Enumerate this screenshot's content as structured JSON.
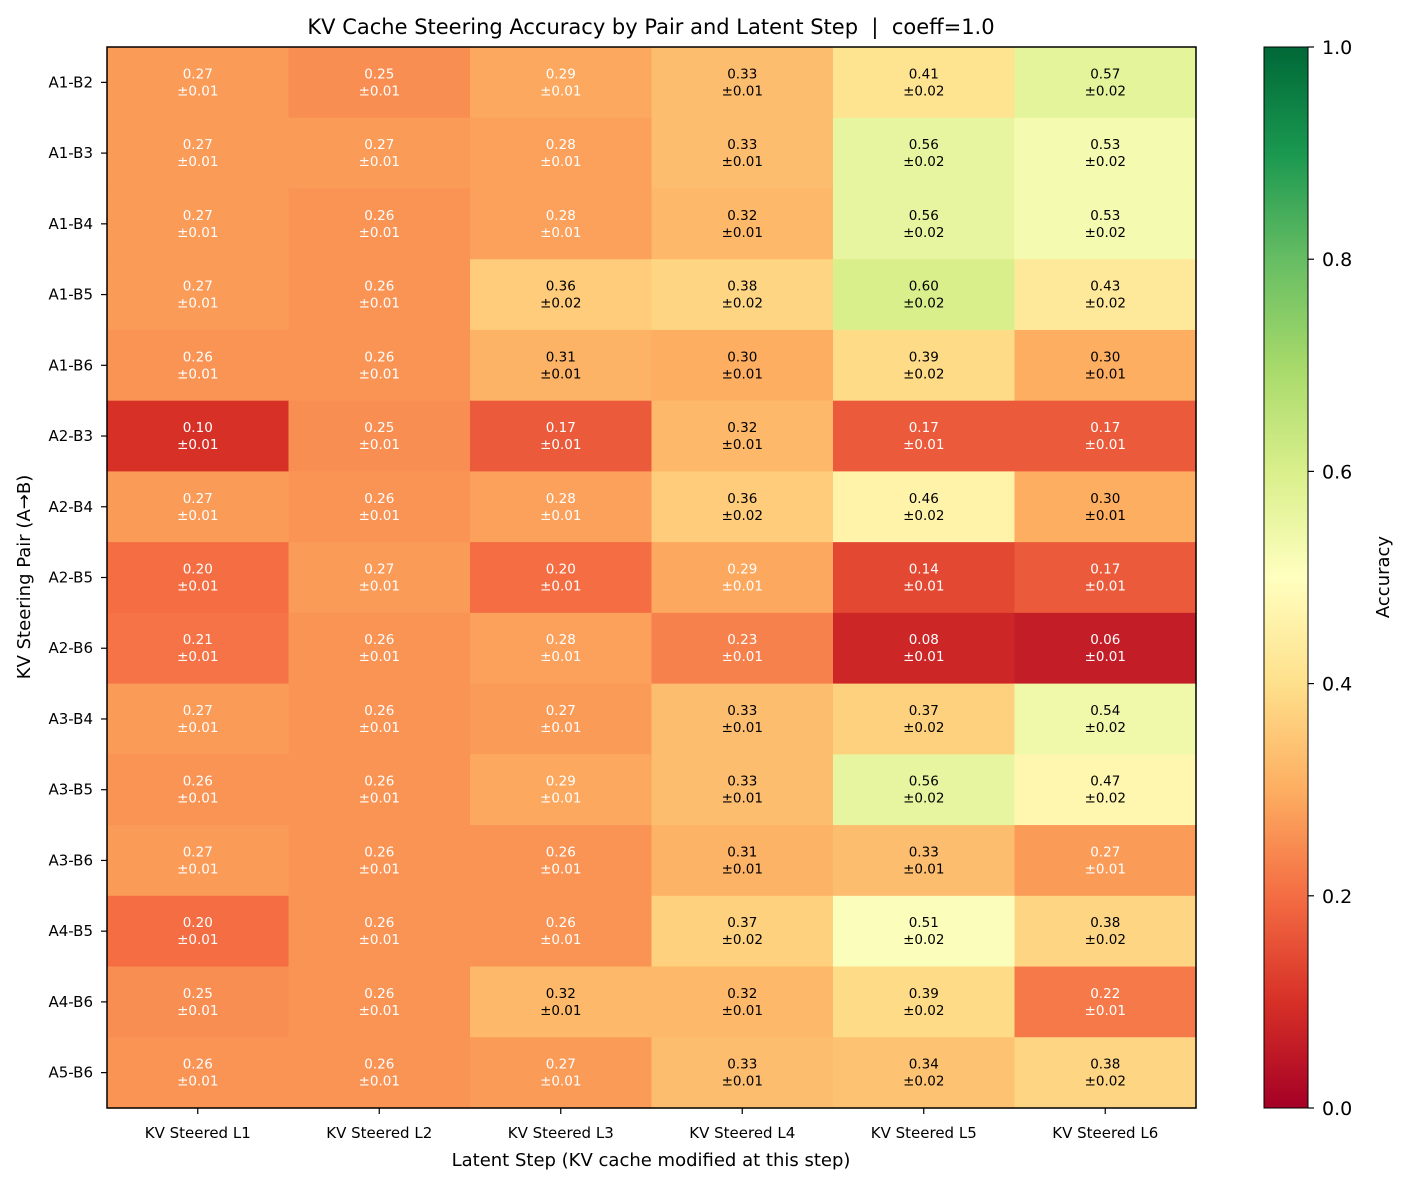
{
  "chart_data": {
    "type": "heatmap",
    "title": "KV Cache Steering Accuracy by Pair and Latent Step  |  coeff=1.0",
    "xlabel": "Latent Step (KV cache modified at this step)",
    "ylabel": "KV Steering Pair (A→B)",
    "columns": [
      "KV Steered L1",
      "KV Steered L2",
      "KV Steered L3",
      "KV Steered L4",
      "KV Steered L5",
      "KV Steered L6"
    ],
    "rows": [
      "A1-B2",
      "A1-B3",
      "A1-B4",
      "A1-B5",
      "A1-B6",
      "A2-B3",
      "A2-B4",
      "A2-B5",
      "A2-B6",
      "A3-B4",
      "A3-B5",
      "A3-B6",
      "A4-B5",
      "A4-B6",
      "A5-B6"
    ],
    "values": [
      [
        0.27,
        0.25,
        0.29,
        0.33,
        0.41,
        0.57
      ],
      [
        0.27,
        0.27,
        0.28,
        0.33,
        0.56,
        0.53
      ],
      [
        0.27,
        0.26,
        0.28,
        0.32,
        0.56,
        0.53
      ],
      [
        0.27,
        0.26,
        0.36,
        0.38,
        0.6,
        0.43
      ],
      [
        0.26,
        0.26,
        0.31,
        0.3,
        0.39,
        0.3
      ],
      [
        0.1,
        0.25,
        0.17,
        0.32,
        0.17,
        0.17
      ],
      [
        0.27,
        0.26,
        0.28,
        0.36,
        0.46,
        0.3
      ],
      [
        0.2,
        0.27,
        0.2,
        0.29,
        0.14,
        0.17
      ],
      [
        0.21,
        0.26,
        0.28,
        0.23,
        0.08,
        0.06
      ],
      [
        0.27,
        0.26,
        0.27,
        0.33,
        0.37,
        0.54
      ],
      [
        0.26,
        0.26,
        0.29,
        0.33,
        0.56,
        0.47
      ],
      [
        0.27,
        0.26,
        0.26,
        0.31,
        0.33,
        0.27
      ],
      [
        0.2,
        0.26,
        0.26,
        0.37,
        0.51,
        0.38
      ],
      [
        0.25,
        0.26,
        0.32,
        0.32,
        0.39,
        0.22
      ],
      [
        0.26,
        0.26,
        0.27,
        0.33,
        0.34,
        0.38
      ]
    ],
    "errors": [
      [
        "±0.01",
        "±0.01",
        "±0.01",
        "±0.01",
        "±0.02",
        "±0.02"
      ],
      [
        "±0.01",
        "±0.01",
        "±0.01",
        "±0.01",
        "±0.02",
        "±0.02"
      ],
      [
        "±0.01",
        "±0.01",
        "±0.01",
        "±0.01",
        "±0.02",
        "±0.02"
      ],
      [
        "±0.01",
        "±0.01",
        "±0.02",
        "±0.02",
        "±0.02",
        "±0.02"
      ],
      [
        "±0.01",
        "±0.01",
        "±0.01",
        "±0.01",
        "±0.02",
        "±0.01"
      ],
      [
        "±0.01",
        "±0.01",
        "±0.01",
        "±0.01",
        "±0.01",
        "±0.01"
      ],
      [
        "±0.01",
        "±0.01",
        "±0.01",
        "±0.02",
        "±0.02",
        "±0.01"
      ],
      [
        "±0.01",
        "±0.01",
        "±0.01",
        "±0.01",
        "±0.01",
        "±0.01"
      ],
      [
        "±0.01",
        "±0.01",
        "±0.01",
        "±0.01",
        "±0.01",
        "±0.01"
      ],
      [
        "±0.01",
        "±0.01",
        "±0.01",
        "±0.01",
        "±0.02",
        "±0.02"
      ],
      [
        "±0.01",
        "±0.01",
        "±0.01",
        "±0.01",
        "±0.02",
        "±0.02"
      ],
      [
        "±0.01",
        "±0.01",
        "±0.01",
        "±0.01",
        "±0.01",
        "±0.01"
      ],
      [
        "±0.01",
        "±0.01",
        "±0.01",
        "±0.02",
        "±0.02",
        "±0.02"
      ],
      [
        "±0.01",
        "±0.01",
        "±0.01",
        "±0.01",
        "±0.02",
        "±0.01"
      ],
      [
        "±0.01",
        "±0.01",
        "±0.01",
        "±0.01",
        "±0.02",
        "±0.02"
      ]
    ],
    "colormap": "RdYlGn",
    "vmin": 0.0,
    "vmax": 1.0,
    "colorbar": {
      "label": "Accuracy",
      "ticks": [
        "0.0",
        "0.2",
        "0.4",
        "0.6",
        "0.8",
        "1.0"
      ]
    }
  }
}
